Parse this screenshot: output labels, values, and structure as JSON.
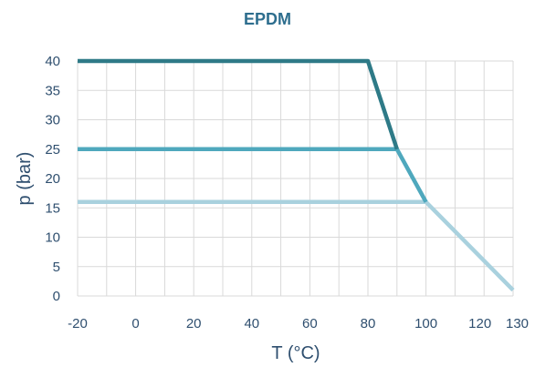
{
  "chart_data": {
    "type": "line",
    "title": "EPDM",
    "xlabel": "T (°C)",
    "ylabel": "p (bar)",
    "xlim": [
      -20,
      130
    ],
    "ylim": [
      0,
      40
    ],
    "xticks": [
      -20,
      0,
      20,
      40,
      60,
      80,
      100,
      120,
      130
    ],
    "yticks": [
      0,
      5,
      10,
      15,
      20,
      25,
      30,
      35,
      40
    ],
    "grid": true,
    "legend": "none",
    "series": [
      {
        "color": "#a9d1de",
        "x": [
          -20,
          100,
          130
        ],
        "y": [
          16,
          16,
          1
        ]
      },
      {
        "color": "#4fa8bd",
        "x": [
          -20,
          90,
          100
        ],
        "y": [
          25,
          25,
          16
        ]
      },
      {
        "color": "#2e7a87",
        "x": [
          -20,
          80,
          90
        ],
        "y": [
          40,
          40,
          25
        ]
      }
    ]
  }
}
